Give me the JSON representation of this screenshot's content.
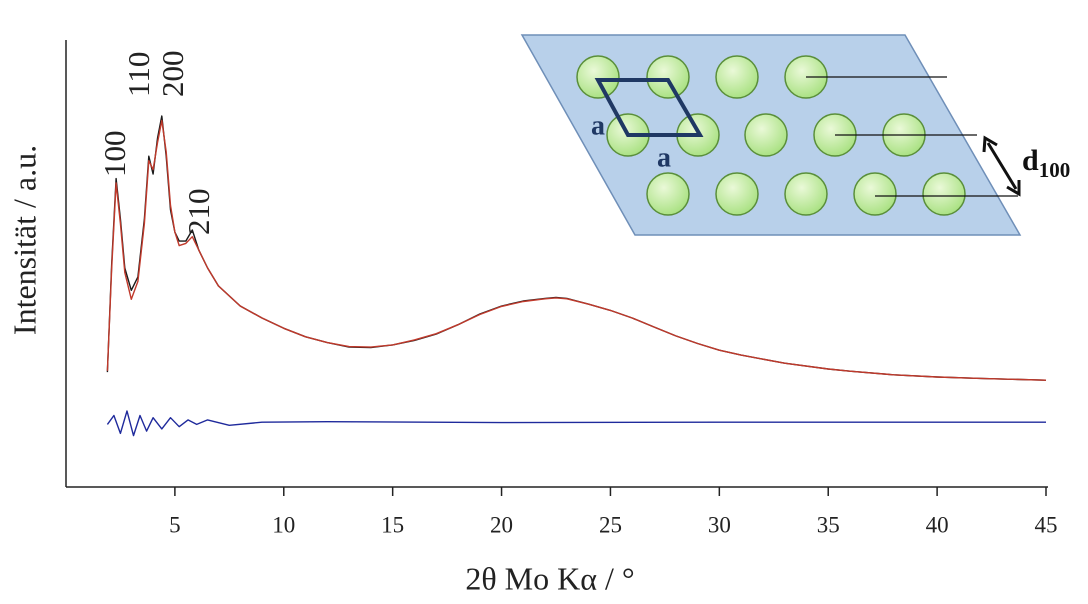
{
  "chart_data": {
    "type": "line",
    "x_label": "2θ Mo Kα / °",
    "y_label": "Intensität / a.u.",
    "xlim": [
      0,
      45
    ],
    "xticks": [
      5,
      10,
      15,
      20,
      25,
      30,
      35,
      40,
      45
    ],
    "ylim": [
      0,
      100
    ],
    "grid": false,
    "annotations": [
      "100",
      "110",
      "200",
      "210"
    ],
    "series": [
      {
        "color": "#1a1a1a",
        "x": [
          1.9,
          2.1,
          2.3,
          2.5,
          2.7,
          3.0,
          3.3,
          3.6,
          3.8,
          4.0,
          4.2,
          4.4,
          4.6,
          4.8,
          5.0,
          5.2,
          5.5,
          5.8,
          6.1,
          6.5,
          7,
          8,
          9,
          10,
          11,
          12,
          13,
          14,
          15,
          16,
          17,
          18,
          19,
          20,
          21,
          22,
          22.5,
          23,
          24,
          25,
          26,
          27,
          28,
          29,
          30,
          31,
          33,
          35,
          36,
          38,
          40,
          42,
          45
        ],
        "values": [
          25.7,
          50,
          69,
          60,
          49,
          44,
          47,
          60,
          74,
          70,
          78,
          83,
          74,
          62,
          57,
          55,
          55,
          57.5,
          53,
          49,
          45,
          40.5,
          37.8,
          35.5,
          33.6,
          32.3,
          31.3,
          31.2,
          31.8,
          32.8,
          34.2,
          36.3,
          38.7,
          40.5,
          41.6,
          42.2,
          42.4,
          42.2,
          40.9,
          39.5,
          37.8,
          35.8,
          33.8,
          32.1,
          30.6,
          29.5,
          27.7,
          26.4,
          25.9,
          25.1,
          24.6,
          24.3,
          23.9
        ]
      },
      {
        "color": "#c0392b",
        "x": [
          1.9,
          2.1,
          2.3,
          2.5,
          2.7,
          3.0,
          3.3,
          3.6,
          3.8,
          4.0,
          4.2,
          4.4,
          4.6,
          4.8,
          5.0,
          5.2,
          5.5,
          5.8,
          6.1,
          6.5,
          7,
          8,
          9,
          10,
          11,
          12,
          13,
          14,
          15,
          16,
          17,
          18,
          19,
          20,
          21,
          22,
          22.5,
          23,
          24,
          25,
          26,
          27,
          28,
          29,
          30,
          31,
          33,
          35,
          36,
          38,
          40,
          42,
          45
        ],
        "values": [
          26,
          49,
          68,
          59,
          48,
          42,
          46,
          59,
          73,
          71,
          77,
          82,
          75,
          63,
          57,
          54,
          54.5,
          56,
          53,
          49,
          45,
          40.5,
          37.8,
          35.5,
          33.6,
          32.3,
          31.4,
          31.3,
          31.8,
          32.9,
          34.3,
          36.3,
          38.6,
          40.4,
          41.5,
          42.1,
          42.3,
          42.1,
          40.9,
          39.5,
          37.8,
          35.8,
          33.8,
          32.1,
          30.6,
          29.5,
          27.7,
          26.4,
          25.9,
          25.1,
          24.6,
          24.3,
          23.9
        ]
      },
      {
        "color": "#1f2a9c",
        "x": [
          1.9,
          2.2,
          2.5,
          2.8,
          3.1,
          3.4,
          3.7,
          4.0,
          4.4,
          4.8,
          5.2,
          5.6,
          6.0,
          6.5,
          7.5,
          9,
          12,
          20,
          30,
          45
        ],
        "values": [
          14,
          16,
          12,
          17,
          11.5,
          16,
          12.5,
          15.5,
          13,
          15.5,
          13.5,
          15,
          14,
          15,
          13.8,
          14.5,
          14.6,
          14.4,
          14.5,
          14.5
        ]
      }
    ]
  },
  "inset": {
    "lattice_labels": [
      "a",
      "a"
    ],
    "spacing_label": "d",
    "spacing_index": "100"
  }
}
